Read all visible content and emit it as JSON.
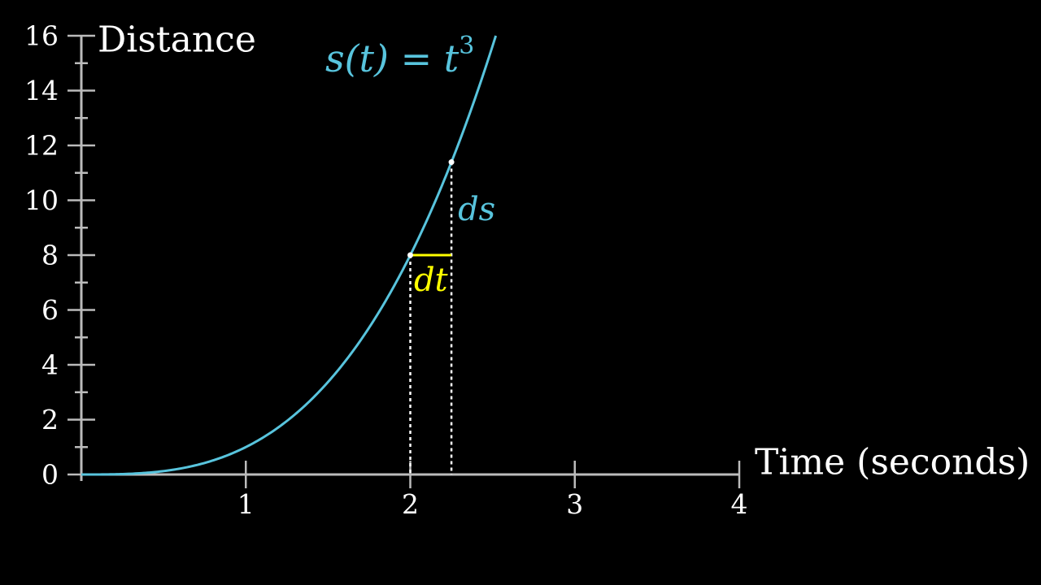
{
  "chart_data": {
    "type": "line",
    "xlabel": "Time (seconds)",
    "ylabel": "Distance",
    "xlim": [
      0,
      4
    ],
    "ylim": [
      0,
      16
    ],
    "x_ticks": [
      1,
      2,
      3,
      4
    ],
    "x_tick_labels": [
      "1",
      "2",
      "3",
      "4"
    ],
    "y_ticks": [
      0,
      2,
      4,
      6,
      8,
      10,
      12,
      14,
      16
    ],
    "y_tick_labels": [
      "0",
      "2",
      "4",
      "6",
      "8",
      "10",
      "12",
      "14",
      "16"
    ],
    "y_minor_step": 1,
    "grid": false,
    "series": [
      {
        "name": "s(t) = t³",
        "formula": "t^3",
        "color": "#58C4DD",
        "x": [
          0,
          0.25,
          0.5,
          0.75,
          1,
          1.25,
          1.5,
          1.75,
          2,
          2.25,
          2.5,
          2.52
        ],
        "y": [
          0,
          0.016,
          0.125,
          0.422,
          1,
          1.953,
          3.375,
          5.359,
          8,
          11.391,
          15.625,
          16
        ]
      }
    ],
    "annotations": {
      "curve_label": {
        "base": "s(t) = t",
        "exponent": "3",
        "color": "#58C4DD"
      },
      "point_a": {
        "x": 2,
        "y": 8
      },
      "point_b": {
        "x": 2.25,
        "y": 11.391
      },
      "dt": {
        "label": "dt",
        "from_x": 2,
        "to_x": 2.25,
        "at_y": 8,
        "color": "#FFFF00"
      },
      "ds": {
        "label": "ds",
        "at_x": 2.25,
        "from_y": 8,
        "to_y": 11.391,
        "color": "#58C4DD"
      }
    }
  }
}
